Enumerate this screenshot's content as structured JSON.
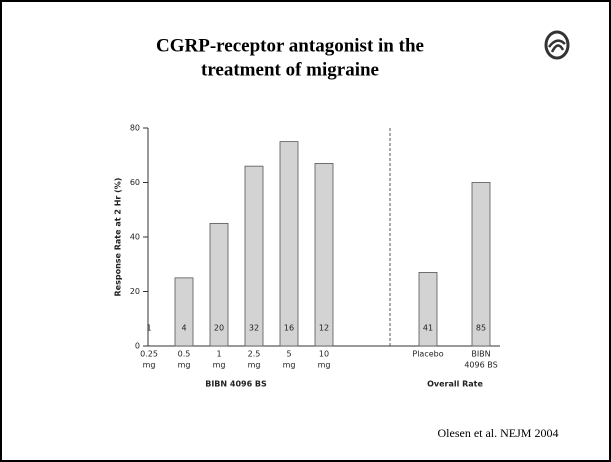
{
  "title": [
    "CGRP-receptor antagonist in the",
    "treatment of migraine"
  ],
  "citation": "Olesen et al. NEJM 2004",
  "chart_data": {
    "type": "bar",
    "y_label": "Response Rate at 2 Hr (%)",
    "categories": [
      [
        "0.25",
        "mg"
      ],
      [
        "0.5",
        "mg"
      ],
      [
        "1",
        "mg"
      ],
      [
        "2.5",
        "mg"
      ],
      [
        "5",
        "mg"
      ],
      [
        "10",
        "mg"
      ],
      [
        "Placebo"
      ],
      [
        "BIBN",
        "4096 BS"
      ]
    ],
    "values": [
      0,
      25,
      45,
      66,
      75,
      67,
      27,
      60
    ],
    "n_labels": [
      1,
      4,
      20,
      32,
      16,
      12,
      41,
      85
    ],
    "groups": [
      "BIBN 4096 BS",
      "Overall Rate"
    ],
    "color": "#d3d3d3",
    "ylim": [
      0,
      80
    ],
    "yticks": [
      0,
      20,
      40,
      60,
      80
    ]
  }
}
